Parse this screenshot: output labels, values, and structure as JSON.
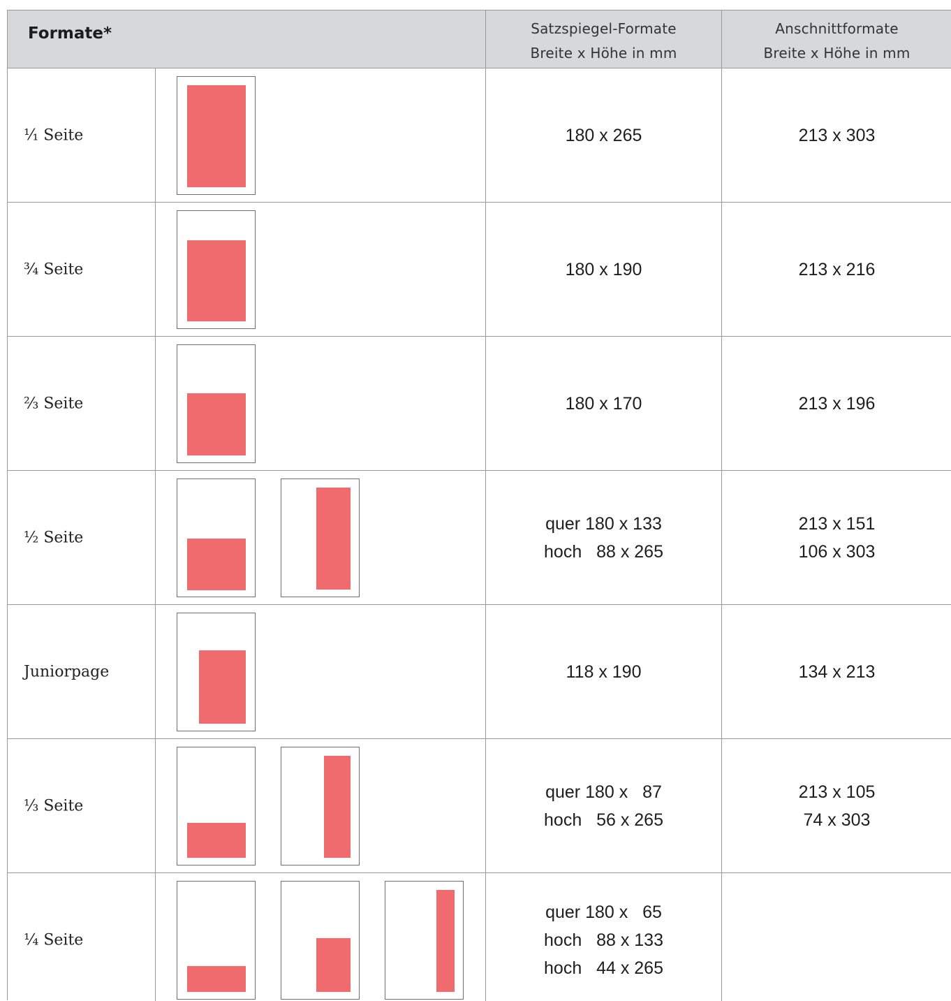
{
  "header": {
    "title": "Formate*",
    "satz_line1": "Satzspiegel-Formate",
    "satz_line2": "Breite x Höhe in mm",
    "ansch_line1": "Anschnittformate",
    "ansch_line2": "Breite x Höhe in mm"
  },
  "colors": {
    "header_bg": "#d7d8da",
    "block": "#f06b6e",
    "border": "#9a9a9a"
  },
  "rows": [
    {
      "label": "¹⁄₁ Seite",
      "satz": "180 x 265",
      "ansch": "213 x 303"
    },
    {
      "label": "¾ Seite",
      "satz": "180 x 190",
      "ansch": "213 x 216"
    },
    {
      "label": "⅔ Seite",
      "satz": "180 x 170",
      "ansch": "213 x 196"
    },
    {
      "label": "½ Seite",
      "satz": "quer 180 x 133\nhoch   88 x 265",
      "ansch": "213 x 151\n106 x 303"
    },
    {
      "label": "Juniorpage",
      "satz": "118 x 190",
      "ansch": "134 x 213"
    },
    {
      "label": "⅓ Seite",
      "satz": "quer 180 x   87\nhoch   56 x 265",
      "ansch": "213 x 105\n74 x 303"
    },
    {
      "label": "¼ Seite",
      "satz": "quer 180 x   65\nhoch   88 x 133\nhoch   44 x 265",
      "ansch": ""
    }
  ]
}
